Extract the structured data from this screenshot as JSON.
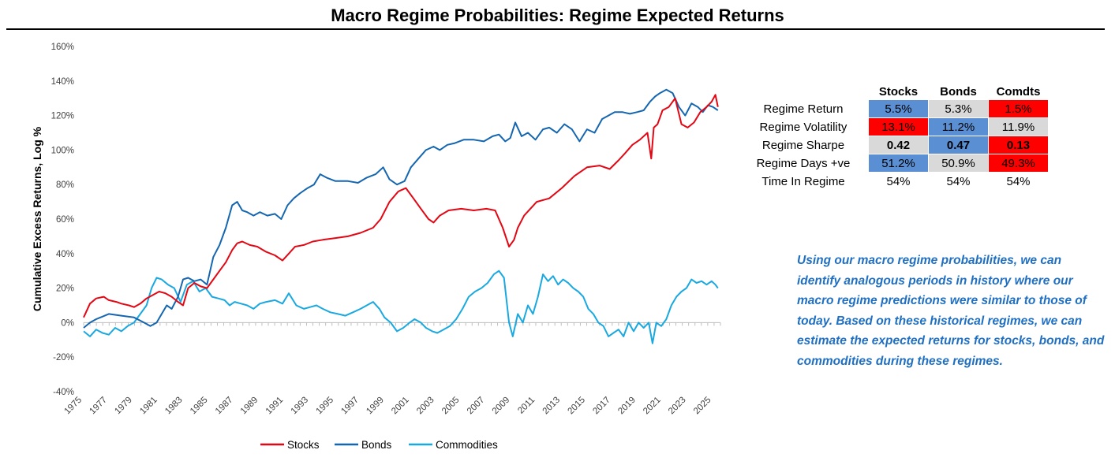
{
  "title": "Macro Regime Probabilities: Regime Expected Returns",
  "colors": {
    "stocks": "#e30613",
    "bonds": "#1566b0",
    "commodities": "#19a9e0",
    "blue_cell": "#5b8fd4",
    "grey_cell": "#d9d9d9",
    "red_cell": "#ff0000"
  },
  "chart_data": {
    "type": "line",
    "title": "Macro Regime Probabilities: Regime Expected Returns",
    "xlabel": "",
    "ylabel": "Cumulative Excess Returns, Log %",
    "xlim": [
      1975,
      2025.6
    ],
    "ylim": [
      -40,
      160
    ],
    "yticks": [
      -40,
      -20,
      0,
      20,
      40,
      60,
      80,
      100,
      120,
      140,
      160
    ],
    "ytick_labels": [
      "-40%",
      "-20%",
      "0%",
      "20%",
      "40%",
      "60%",
      "80%",
      "100%",
      "120%",
      "140%",
      "160%"
    ],
    "xticks": [
      1975,
      1977,
      1979,
      1981,
      1983,
      1985,
      1987,
      1989,
      1991,
      1993,
      1995,
      1997,
      1999,
      2001,
      2003,
      2005,
      2007,
      2009,
      2011,
      2013,
      2015,
      2017,
      2019,
      2021,
      2023,
      2025
    ],
    "xtick_labels": [
      "1975",
      "1977",
      "1979",
      "1981",
      "1983",
      "1985",
      "1987",
      "1989",
      "1991",
      "1993",
      "1995",
      "1997",
      "1999",
      "2001",
      "2003",
      "2005",
      "2007",
      "2009",
      "2011",
      "2013",
      "2015",
      "2017",
      "2019",
      "2021",
      "2023",
      "2025"
    ],
    "grid": false,
    "legend_position": "bottom",
    "series": [
      {
        "name": "Stocks",
        "color": "#e30613",
        "x": [
          1975,
          1975.5,
          1976,
          1976.6,
          1977,
          1977.6,
          1978,
          1978.6,
          1979,
          1979.5,
          1980,
          1980.5,
          1981,
          1981.5,
          1982,
          1982.5,
          1982.9,
          1983.3,
          1983.8,
          1984.3,
          1984.8,
          1985.3,
          1985.8,
          1986.3,
          1986.8,
          1987.2,
          1987.6,
          1988.2,
          1988.8,
          1989.5,
          1990.2,
          1990.8,
          1991.3,
          1991.8,
          1992.5,
          1993.2,
          1994,
          1995,
          1996,
          1997,
          1998,
          1998.6,
          1999.3,
          2000,
          2000.6,
          2001.2,
          2001.8,
          2002.4,
          2002.8,
          2003.3,
          2004,
          2005,
          2006,
          2007,
          2007.7,
          2008.3,
          2008.8,
          2009.2,
          2009.5,
          2010,
          2011,
          2012,
          2013,
          2014,
          2015,
          2016,
          2016.8,
          2017.5,
          2018,
          2018.6,
          2019.2,
          2019.8,
          2020.1,
          2020.3,
          2020.6,
          2021,
          2021.5,
          2022,
          2022.5,
          2023,
          2023.5,
          2024,
          2024.5,
          2024.9,
          2025.2,
          2025.4
        ],
        "y": [
          3,
          11,
          14,
          15,
          13,
          12,
          11,
          10,
          9,
          11,
          14,
          16,
          18,
          17,
          15,
          12,
          10,
          20,
          23,
          21,
          20,
          25,
          30,
          35,
          42,
          46,
          47,
          45,
          44,
          41,
          39,
          36,
          40,
          44,
          45,
          47,
          48,
          49,
          50,
          52,
          55,
          60,
          70,
          76,
          78,
          72,
          66,
          60,
          58,
          62,
          65,
          66,
          65,
          66,
          65,
          55,
          44,
          48,
          55,
          62,
          70,
          72,
          78,
          85,
          90,
          91,
          89,
          94,
          98,
          103,
          106,
          110,
          95,
          113,
          115,
          123,
          125,
          130,
          115,
          113,
          116,
          122,
          125,
          128,
          132,
          125
        ]
      },
      {
        "name": "Bonds",
        "color": "#1566b0",
        "x": [
          1975,
          1975.5,
          1976,
          1977,
          1978,
          1979,
          1979.8,
          1980.3,
          1980.8,
          1981.2,
          1981.6,
          1982,
          1982.5,
          1982.9,
          1983.3,
          1983.8,
          1984.3,
          1984.8,
          1985.3,
          1985.8,
          1986.3,
          1986.8,
          1987.2,
          1987.6,
          1988,
          1988.5,
          1989,
          1989.6,
          1990.2,
          1990.7,
          1991.2,
          1991.7,
          1992.2,
          1992.8,
          1993.3,
          1993.8,
          1994.3,
          1995,
          1996,
          1996.8,
          1997.5,
          1998.2,
          1998.8,
          1999.3,
          1999.9,
          2000.5,
          2001,
          2001.6,
          2002.2,
          2002.8,
          2003.3,
          2003.9,
          2004.5,
          2005.2,
          2006,
          2006.8,
          2007.5,
          2008,
          2008.5,
          2008.9,
          2009.3,
          2009.8,
          2010.3,
          2010.9,
          2011.5,
          2012,
          2012.6,
          2013.2,
          2013.8,
          2014.4,
          2015,
          2015.6,
          2016.2,
          2016.7,
          2017.2,
          2017.8,
          2018.4,
          2019,
          2019.5,
          2020,
          2020.4,
          2020.8,
          2021.3,
          2021.8,
          2022.3,
          2022.8,
          2023.3,
          2023.8,
          2024.2,
          2024.6,
          2025,
          2025.4
        ],
        "y": [
          -3,
          0,
          2,
          5,
          4,
          3,
          0,
          -2,
          0,
          5,
          10,
          8,
          15,
          25,
          26,
          24,
          25,
          22,
          38,
          45,
          55,
          68,
          70,
          65,
          64,
          62,
          64,
          62,
          63,
          60,
          68,
          72,
          75,
          78,
          80,
          86,
          84,
          82,
          82,
          81,
          84,
          86,
          90,
          83,
          80,
          82,
          90,
          95,
          100,
          102,
          100,
          103,
          104,
          106,
          106,
          105,
          108,
          109,
          105,
          107,
          116,
          108,
          110,
          106,
          112,
          113,
          110,
          115,
          112,
          105,
          112,
          110,
          118,
          120,
          122,
          122,
          121,
          122,
          123,
          128,
          131,
          133,
          135,
          133,
          125,
          120,
          127,
          125,
          122,
          126,
          125,
          123
        ]
      },
      {
        "name": "Commodities",
        "color": "#19a9e0",
        "x": [
          1975,
          1975.5,
          1976,
          1976.5,
          1977,
          1977.5,
          1978,
          1978.5,
          1979,
          1979.5,
          1980,
          1980.4,
          1980.8,
          1981.2,
          1981.7,
          1982.2,
          1982.7,
          1983.2,
          1983.7,
          1984.2,
          1984.7,
          1985.2,
          1985.7,
          1986.2,
          1986.6,
          1987,
          1987.5,
          1988,
          1988.5,
          1989,
          1989.5,
          1990.2,
          1990.8,
          1991.3,
          1991.9,
          1992.5,
          1993,
          1993.5,
          1994,
          1994.6,
          1995.2,
          1995.8,
          1996.4,
          1997,
          1997.5,
          1998,
          1998.5,
          1998.9,
          1999.4,
          1999.9,
          2000.4,
          2000.9,
          2001.3,
          2001.8,
          2002.2,
          2002.7,
          2003.1,
          2003.6,
          2004.1,
          2004.6,
          2005.1,
          2005.6,
          2006.1,
          2006.6,
          2007.1,
          2007.6,
          2008,
          2008.4,
          2008.8,
          2009.1,
          2009.5,
          2009.9,
          2010.3,
          2010.7,
          2011.1,
          2011.5,
          2011.9,
          2012.3,
          2012.7,
          2013.1,
          2013.5,
          2013.9,
          2014.3,
          2014.7,
          2015.1,
          2015.5,
          2015.9,
          2016.3,
          2016.7,
          2017.1,
          2017.5,
          2017.9,
          2018.3,
          2018.7,
          2019.1,
          2019.5,
          2019.9,
          2020.2,
          2020.5,
          2020.9,
          2021.3,
          2021.7,
          2022.1,
          2022.5,
          2022.9,
          2023.3,
          2023.7,
          2024.1,
          2024.5,
          2024.9,
          2025.2,
          2025.4
        ],
        "y": [
          -5,
          -8,
          -4,
          -6,
          -7,
          -3,
          -5,
          -2,
          0,
          5,
          10,
          20,
          26,
          25,
          22,
          20,
          12,
          22,
          24,
          18,
          20,
          15,
          14,
          13,
          10,
          12,
          11,
          10,
          8,
          11,
          12,
          13,
          11,
          17,
          10,
          8,
          9,
          10,
          8,
          6,
          5,
          4,
          6,
          8,
          10,
          12,
          8,
          3,
          0,
          -5,
          -3,
          0,
          2,
          0,
          -3,
          -5,
          -6,
          -4,
          -2,
          2,
          8,
          15,
          18,
          20,
          23,
          28,
          30,
          26,
          0,
          -8,
          5,
          0,
          10,
          5,
          15,
          28,
          24,
          27,
          22,
          25,
          23,
          20,
          18,
          15,
          8,
          5,
          0,
          -2,
          -8,
          -6,
          -4,
          -8,
          0,
          -5,
          0,
          -3,
          0,
          -12,
          0,
          -2,
          2,
          10,
          15,
          18,
          20,
          25,
          23,
          24,
          22,
          24,
          22,
          20
        ]
      }
    ]
  },
  "legend": {
    "stocks": "Stocks",
    "bonds": "Bonds",
    "commodities": "Commodities"
  },
  "table": {
    "headers": [
      "Stocks",
      "Bonds",
      "Comdts"
    ],
    "rows": [
      {
        "label": "Regime Return",
        "values": [
          "5.5%",
          "5.3%",
          "1.5%"
        ],
        "colors": [
          "#5b8fd4",
          "#d9d9d9",
          "#ff0000"
        ],
        "bold": false
      },
      {
        "label": "Regime Volatility",
        "values": [
          "13.1%",
          "11.2%",
          "11.9%"
        ],
        "colors": [
          "#ff0000",
          "#5b8fd4",
          "#d9d9d9"
        ],
        "bold": false
      },
      {
        "label": "Regime Sharpe",
        "values": [
          "0.42",
          "0.47",
          "0.13"
        ],
        "colors": [
          "#d9d9d9",
          "#5b8fd4",
          "#ff0000"
        ],
        "bold": true
      },
      {
        "label": "Regime Days +ve",
        "values": [
          "51.2%",
          "50.9%",
          "49.3%"
        ],
        "colors": [
          "#5b8fd4",
          "#d9d9d9",
          "#ff0000"
        ],
        "bold": false
      },
      {
        "label": "Time In Regime",
        "values": [
          "54%",
          "54%",
          "54%"
        ],
        "colors": [
          "#ffffff",
          "#ffffff",
          "#ffffff"
        ],
        "bold": false
      }
    ]
  },
  "commentary": "Using our macro regime probabilities, we can identify analogous periods in history where our macro regime predictions were similar to those of today. Based on these historical regimes, we can estimate the expected returns for stocks, bonds, and commodities during these regimes."
}
